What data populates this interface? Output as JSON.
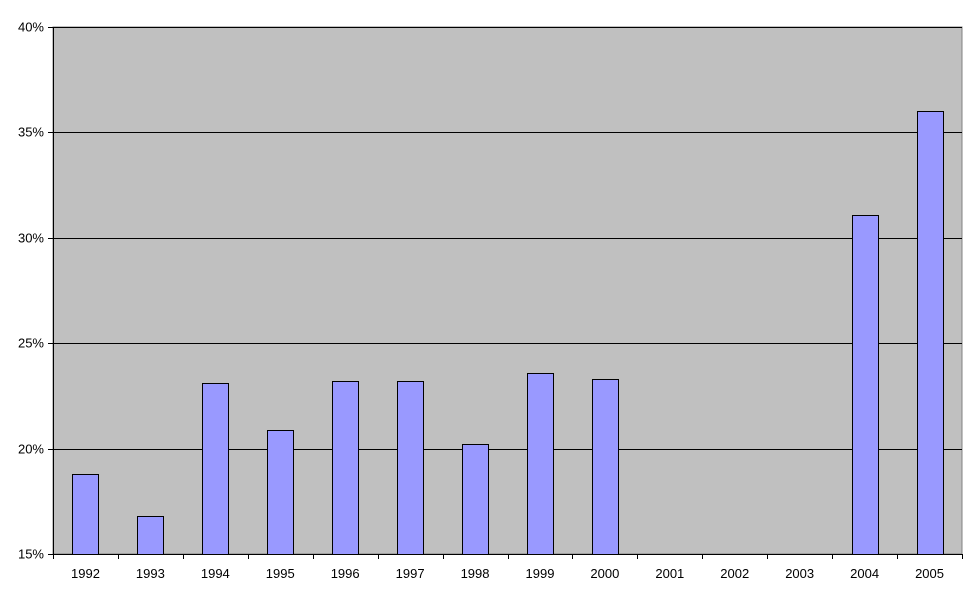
{
  "chart_data": {
    "type": "bar",
    "title": "",
    "xlabel": "",
    "ylabel": "",
    "categories": [
      "1992",
      "1993",
      "1994",
      "1995",
      "1996",
      "1997",
      "1998",
      "1999",
      "2000",
      "2001",
      "2002",
      "2003",
      "2004",
      "2005"
    ],
    "values": [
      18.8,
      16.8,
      23.1,
      20.9,
      23.2,
      23.2,
      20.2,
      23.6,
      23.3,
      null,
      null,
      null,
      31.1,
      36.0
    ],
    "ylim": [
      15,
      40
    ],
    "yticks": [
      15,
      20,
      25,
      30,
      35,
      40
    ],
    "ytick_labels": [
      "15%",
      "20%",
      "25%",
      "30%",
      "35%",
      "40%"
    ],
    "grid": true,
    "legend": "none",
    "colors": {
      "bar_fill": "#9999FF",
      "bar_stroke": "#000000",
      "plot_background": "#C0C0C0",
      "gridline": "#000000"
    }
  }
}
